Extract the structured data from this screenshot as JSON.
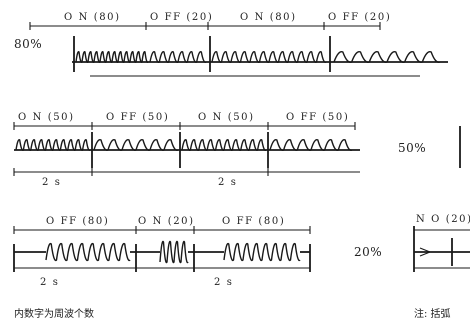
{
  "rows": [
    {
      "id": "80",
      "segments": [
        {
          "label": "O N (80)",
          "state": "on"
        },
        {
          "label": "O FF (20)",
          "state": "off"
        },
        {
          "label": "O N (80)",
          "state": "on"
        },
        {
          "label": "O FF (20)",
          "state": "off"
        }
      ],
      "percent": "80%",
      "time_labels": []
    },
    {
      "id": "50",
      "segments": [
        {
          "label": "O N (50)",
          "state": "on"
        },
        {
          "label": "O FF (50)",
          "state": "off"
        },
        {
          "label": "O N (50)",
          "state": "on"
        },
        {
          "label": "O FF (50)",
          "state": "off"
        }
      ],
      "percent": "50%",
      "time_labels": [
        "2 s",
        "2 s"
      ]
    },
    {
      "id": "20",
      "segments": [
        {
          "label": "O FF (80)",
          "state": "off"
        },
        {
          "label": "O N (20)",
          "state": "on"
        },
        {
          "label": "O FF (80)",
          "state": "off"
        }
      ],
      "percent": "20%",
      "time_labels": [
        "2 s",
        "2 s"
      ],
      "partial_label": "N O (20)"
    }
  ],
  "notes": {
    "left": "内数字为周波个数",
    "right": "注: 括弧"
  }
}
